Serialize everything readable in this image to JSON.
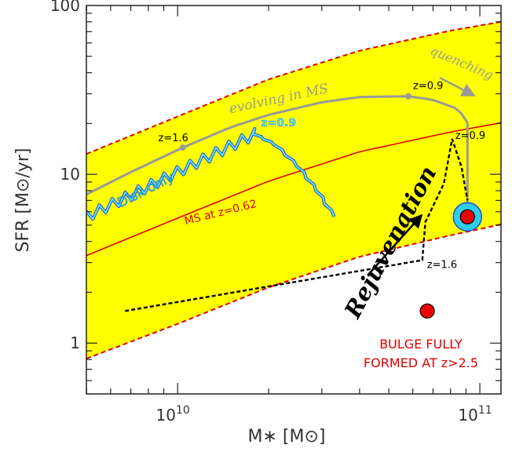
{
  "chart_data": {
    "type": "line",
    "xlabel": "M∗ [M⊙]",
    "ylabel": "SFR [M⊙/yr]",
    "xscale": "log",
    "yscale": "log",
    "xlim": [
      4990000000.0,
      117500000000.0
    ],
    "ylim": [
      0.5,
      100
    ],
    "x_ticks": [
      {
        "value": 10000000000.0,
        "base": "10",
        "exp": "10"
      },
      {
        "value": 100000000000.0,
        "base": "10",
        "exp": "11"
      }
    ],
    "y_ticks": [
      {
        "value": 1,
        "label": "1"
      },
      {
        "value": 10,
        "label": "10"
      },
      {
        "value": 100,
        "label": "100"
      }
    ],
    "colors": {
      "band": "#ffff00",
      "band_edge": "#e00000",
      "ms_line": "#e00000",
      "evolving_track": "#999999",
      "disk_track": "#33ccee",
      "bulge_track": "#000000",
      "point": "#ee0000",
      "halo": "#33ccee"
    },
    "series": {
      "band_upper": [
        [
          4990000000.0,
          13.2
        ],
        [
          10000000000.0,
          22.0
        ],
        [
          20000000000.0,
          36.5
        ],
        [
          40000000000.0,
          54.0
        ],
        [
          80000000000.0,
          71.0
        ],
        [
          117500000000.0,
          80.0
        ]
      ],
      "band_lower": [
        [
          4990000000.0,
          0.81
        ],
        [
          10000000000.0,
          1.3
        ],
        [
          20000000000.0,
          2.14
        ],
        [
          40000000000.0,
          3.25
        ],
        [
          80000000000.0,
          4.35
        ],
        [
          117500000000.0,
          5.05
        ]
      ],
      "ms_z062": [
        [
          4990000000.0,
          3.3
        ],
        [
          10000000000.0,
          5.5
        ],
        [
          20000000000.0,
          9.1
        ],
        [
          40000000000.0,
          13.6
        ],
        [
          80000000000.0,
          17.8
        ],
        [
          117500000000.0,
          20.2
        ]
      ],
      "evolving_in_ms": [
        [
          4990000000.0,
          7.6
        ],
        [
          7000000000.0,
          10.3
        ],
        [
          10400000000.0,
          14.4
        ],
        [
          15000000000.0,
          19.0
        ],
        [
          20000000000.0,
          22.5
        ],
        [
          30000000000.0,
          26.7
        ],
        [
          40000000000.0,
          28.7
        ],
        [
          58000000000.0,
          29.0
        ],
        [
          70000000000.0,
          27.6
        ],
        [
          85000000000.0,
          24.3
        ],
        [
          91000000000.0,
          20.2
        ]
      ],
      "quenching_drop": [
        [
          91000000000.0,
          20.2
        ],
        [
          91000000000.0,
          5.6
        ]
      ],
      "disk_only_env": [
        [
          4990000000.0,
          5.6
        ],
        [
          18000000000.0,
          17.3
        ],
        [
          21000000000.0,
          15.0
        ],
        [
          25000000000.0,
          11.2
        ],
        [
          29000000000.0,
          8.0
        ],
        [
          33000000000.0,
          5.6
        ]
      ],
      "bulge_track": [
        [
          6700000000.0,
          1.55
        ],
        [
          64500000000.0,
          3.1
        ],
        [
          66000000000.0,
          5.2
        ],
        [
          76000000000.0,
          8.8
        ],
        [
          81000000000.0,
          16.2
        ],
        [
          87000000000.0,
          11.0
        ],
        [
          91000000000.0,
          7.0
        ]
      ]
    },
    "markers": [
      {
        "x": 10400000000.0,
        "y": 14.4,
        "label": "z=1.6"
      },
      {
        "x": 58000000000.0,
        "y": 29.0,
        "label": "z=0.9"
      },
      {
        "x": 18000000000.0,
        "y": 17.3,
        "label": "z=0.9"
      },
      {
        "x": 81000000000.0,
        "y": 16.2,
        "label": "z=0.9"
      },
      {
        "x": 64500000000.0,
        "y": 3.1,
        "label": "z=1.6"
      }
    ],
    "points": [
      {
        "x": 67000000000.0,
        "y": 1.55,
        "halo": false
      },
      {
        "x": 91000000000.0,
        "y": 5.6,
        "halo": true
      }
    ],
    "annotations": {
      "evolving": "evolving in MS",
      "quenching": "quenching",
      "disk_only": "Disk only",
      "ms_line": "MS at z=0.62",
      "rejuvenation": "Rejuvenation",
      "bulge_line1": "BULGE FULLY",
      "bulge_line2": "FORMED AT z>2.5"
    }
  }
}
